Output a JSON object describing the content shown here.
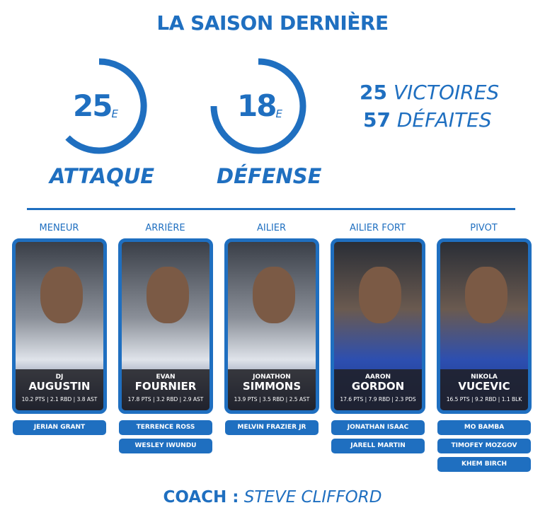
{
  "title": "LA SAISON DERNIÈRE",
  "attack": {
    "rank": "25",
    "suffix": "E",
    "label": "ATTAQUE"
  },
  "defense": {
    "rank": "18",
    "suffix": "E",
    "label": "DÉFENSE"
  },
  "record": {
    "wins": "25",
    "wins_label": "VICTOIRES",
    "losses": "57",
    "losses_label": "DÉFAITES"
  },
  "accent": "#1f6fc0",
  "positions": [
    {
      "pos": "MENEUR",
      "first": "DJ",
      "last": "AUGUSTIN",
      "stats": "10.2 PTS | 2.1 RBD | 3.8 AST",
      "bench": [
        "JERIAN GRANT"
      ]
    },
    {
      "pos": "ARRIÈRE",
      "first": "EVAN",
      "last": "FOURNIER",
      "stats": "17.8 PTS | 3.2 RBD | 2.9 AST",
      "bench": [
        "TERRENCE ROSS",
        "WESLEY IWUNDU"
      ]
    },
    {
      "pos": "AILIER",
      "first": "JONATHON",
      "last": "SIMMONS",
      "stats": "13.9 PTS | 3.5 RBD | 2.5 AST",
      "bench": [
        "MELVIN FRAZIER JR"
      ]
    },
    {
      "pos": "AILIER FORT",
      "first": "AARON",
      "last": "GORDON",
      "stats": "17.6 PTS | 7.9 RBD | 2.3 PDS",
      "bench": [
        "JONATHAN ISAAC",
        "JARELL MARTIN"
      ]
    },
    {
      "pos": "PIVOT",
      "first": "NIKOLA",
      "last": "VUCEVIC",
      "stats": "16.5 PTS | 9.2 RBD | 1.1 BLK",
      "bench": [
        "MO BAMBA",
        "TIMOFEY MOZGOV",
        "KHEM BIRCH"
      ]
    }
  ],
  "coach": {
    "label": "COACH :",
    "name": "STEVE CLIFFORD"
  }
}
